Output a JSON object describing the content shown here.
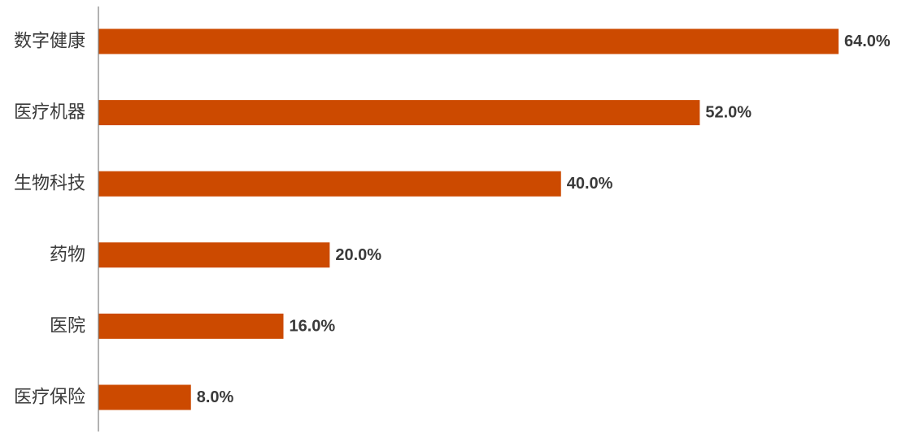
{
  "chart_data": {
    "type": "bar",
    "orientation": "horizontal",
    "categories": [
      "数字健康",
      "医疗机器",
      "生物科技",
      "药物",
      "医院",
      "医疗保险"
    ],
    "values": [
      64.0,
      52.0,
      40.0,
      20.0,
      16.0,
      8.0
    ],
    "value_labels": [
      "64.0%",
      "52.0%",
      "40.0%",
      "20.0%",
      "16.0%",
      "8.0%"
    ],
    "unit": "%",
    "xlim": [
      0,
      64
    ],
    "grid": false,
    "legend": "none",
    "bar_color": "#cc4a00",
    "text_color": "#3a3a3a",
    "axis_color": "#7f7f7f"
  }
}
